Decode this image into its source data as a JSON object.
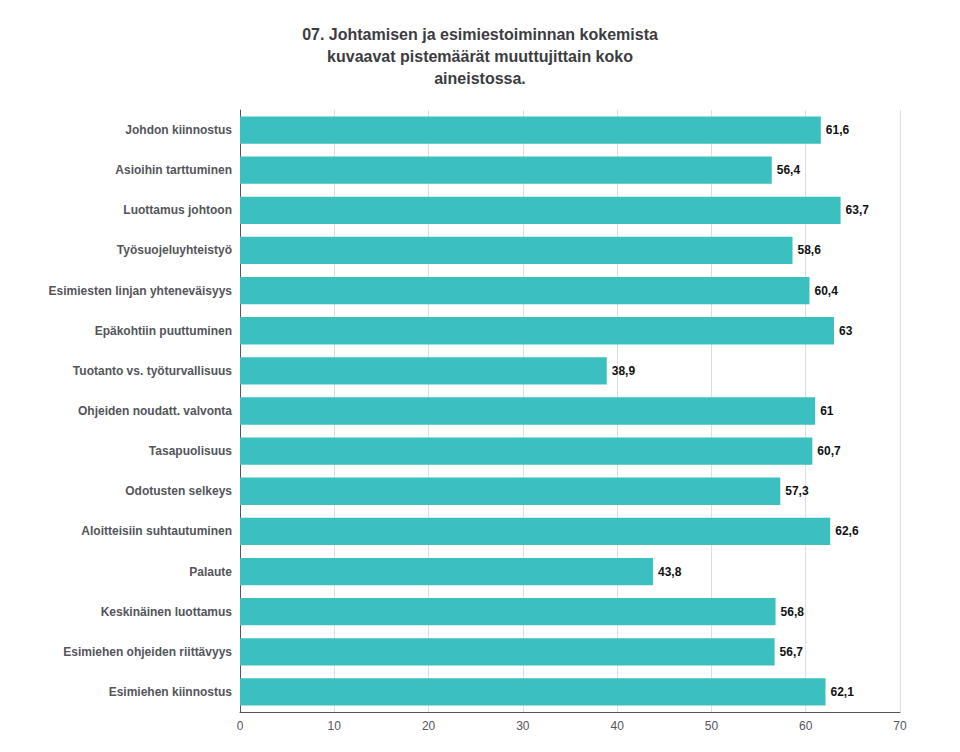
{
  "chart_data": {
    "type": "bar",
    "orientation": "horizontal",
    "title": "07. Johtamisen ja esimiestoiminnan kokemista\nkuvaavat pistemäärät muuttujittain koko\naineistossa.",
    "categories": [
      "Johdon kiinnostus",
      "Asioihin tarttuminen",
      "Luottamus johtoon",
      "Työsuojeluyhteistyö",
      "Esimiesten linjan yhteneväisyys",
      "Epäkohtiin puuttuminen",
      "Tuotanto vs. työturvallisuus",
      "Ohjeiden noudatt. valvonta",
      "Tasapuolisuus",
      "Odotusten selkeys",
      "Aloitteisiin suhtautuminen",
      "Palaute",
      "Keskinäinen luottamus",
      "Esimiehen ohjeiden riittävyys",
      "Esimiehen kiinnostus"
    ],
    "values": [
      61.6,
      56.4,
      63.7,
      58.6,
      60.4,
      63.0,
      38.9,
      61.0,
      60.7,
      57.3,
      62.6,
      43.8,
      56.8,
      56.7,
      62.1
    ],
    "value_labels": [
      "61,6",
      "56,4",
      "63,7",
      "58,6",
      "60,4",
      "63",
      "38,9",
      "61",
      "60,7",
      "57,3",
      "62,6",
      "43,8",
      "56,8",
      "56,7",
      "62,1"
    ],
    "color": "#3bbfbf",
    "xlim": [
      0,
      70
    ],
    "xticks": [
      0,
      10,
      20,
      30,
      40,
      50,
      60,
      70
    ],
    "grid": true,
    "data_labels": true
  }
}
